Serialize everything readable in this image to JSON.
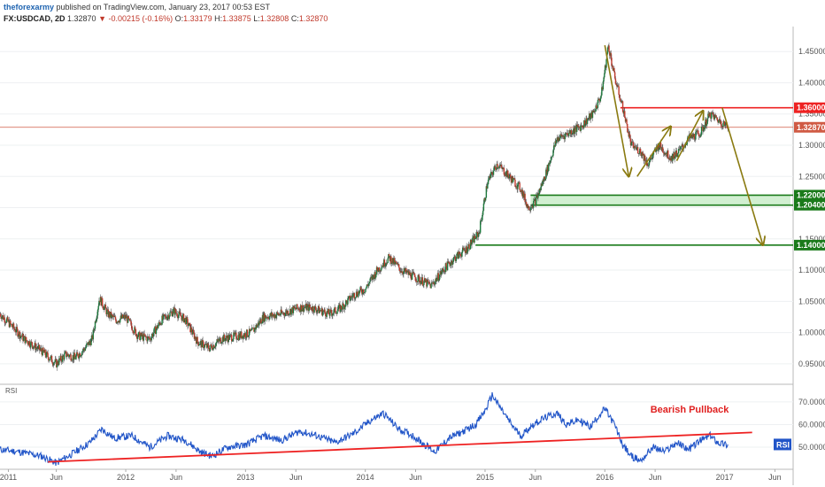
{
  "header": {
    "author": "theforexarmy",
    "published": "published on TradingView.com, January 23, 2017 00:53 EST",
    "symbol": "FX:USDCAD, 2D",
    "last": "1.32870",
    "change": "-0.00215 (-0.16%)",
    "o_label": "O:",
    "o_value": "1.33179",
    "h_label": "H:",
    "h_value": "1.33875",
    "l_label": "L:",
    "l_value": "1.32808",
    "c_label": "C:",
    "c_value": "1.32870"
  },
  "chart_data": [
    {
      "type": "candlestick",
      "symbol": "FX:USDCAD",
      "timeframe": "2D",
      "x_ticks": [
        "2011",
        "Jun",
        "2012",
        "Jun",
        "2013",
        "Jun",
        "2014",
        "Jun",
        "2015",
        "Jun",
        "2016",
        "Jun",
        "2017",
        "Jun"
      ],
      "y_ticks": [
        "0.95000",
        "1.00000",
        "1.05000",
        "1.10000",
        "1.15000",
        "1.20000",
        "1.25000",
        "1.30000",
        "1.35000",
        "1.40000",
        "1.45000"
      ],
      "ylim": [
        0.92,
        1.49
      ],
      "price_path": [
        [
          2010.95,
          1.03
        ],
        [
          2011.05,
          1.01
        ],
        [
          2011.15,
          0.99
        ],
        [
          2011.3,
          0.97
        ],
        [
          2011.42,
          0.95
        ],
        [
          2011.5,
          0.965
        ],
        [
          2011.58,
          0.96
        ],
        [
          2011.66,
          0.975
        ],
        [
          2011.72,
          0.99
        ],
        [
          2011.78,
          1.055
        ],
        [
          2011.85,
          1.03
        ],
        [
          2011.92,
          1.02
        ],
        [
          2012.0,
          1.025
        ],
        [
          2012.1,
          0.995
        ],
        [
          2012.2,
          0.99
        ],
        [
          2012.3,
          1.02
        ],
        [
          2012.4,
          1.035
        ],
        [
          2012.5,
          1.02
        ],
        [
          2012.6,
          0.985
        ],
        [
          2012.7,
          0.975
        ],
        [
          2012.8,
          0.99
        ],
        [
          2012.95,
          0.995
        ],
        [
          2013.05,
          1.0
        ],
        [
          2013.15,
          1.025
        ],
        [
          2013.3,
          1.03
        ],
        [
          2013.45,
          1.04
        ],
        [
          2013.55,
          1.04
        ],
        [
          2013.7,
          1.03
        ],
        [
          2013.8,
          1.04
        ],
        [
          2013.9,
          1.06
        ],
        [
          2014.0,
          1.07
        ],
        [
          2014.1,
          1.1
        ],
        [
          2014.2,
          1.12
        ],
        [
          2014.3,
          1.1
        ],
        [
          2014.45,
          1.085
        ],
        [
          2014.55,
          1.075
        ],
        [
          2014.65,
          1.1
        ],
        [
          2014.75,
          1.12
        ],
        [
          2014.85,
          1.135
        ],
        [
          2014.95,
          1.16
        ],
        [
          2015.02,
          1.24
        ],
        [
          2015.1,
          1.27
        ],
        [
          2015.2,
          1.25
        ],
        [
          2015.3,
          1.23
        ],
        [
          2015.36,
          1.2
        ],
        [
          2015.42,
          1.21
        ],
        [
          2015.5,
          1.25
        ],
        [
          2015.6,
          1.31
        ],
        [
          2015.7,
          1.32
        ],
        [
          2015.8,
          1.33
        ],
        [
          2015.9,
          1.35
        ],
        [
          2015.97,
          1.38
        ],
        [
          2016.03,
          1.46
        ],
        [
          2016.08,
          1.41
        ],
        [
          2016.15,
          1.36
        ],
        [
          2016.22,
          1.3
        ],
        [
          2016.3,
          1.29
        ],
        [
          2016.36,
          1.27
        ],
        [
          2016.45,
          1.3
        ],
        [
          2016.55,
          1.28
        ],
        [
          2016.62,
          1.29
        ],
        [
          2016.7,
          1.31
        ],
        [
          2016.8,
          1.32
        ],
        [
          2016.88,
          1.35
        ],
        [
          2016.95,
          1.34
        ],
        [
          2017.03,
          1.3287
        ]
      ],
      "last_price": 1.3287,
      "levels": [
        {
          "value": 1.36,
          "label": "1.36000",
          "color": "#ee2222"
        },
        {
          "value": 1.22,
          "label": "1.22000",
          "color": "#1a7a1a"
        },
        {
          "value": 1.204,
          "label": "1.20400",
          "color": "#1a7a1a"
        },
        {
          "value": 1.14,
          "label": "1.14000",
          "color": "#1a7a1a"
        },
        {
          "value": 1.3287,
          "label": "1.32870",
          "color": "#d05a44"
        }
      ],
      "support_zone": [
        1.204,
        1.22
      ],
      "arrows": [
        [
          [
            2016.0,
            1.46
          ],
          [
            2016.2,
            1.25
          ]
        ],
        [
          [
            2016.27,
            1.25
          ],
          [
            2016.55,
            1.33
          ]
        ],
        [
          [
            2016.6,
            1.275
          ],
          [
            2016.82,
            1.355
          ]
        ],
        [
          [
            2016.98,
            1.36
          ],
          [
            2017.32,
            1.14
          ]
        ]
      ]
    },
    {
      "type": "line",
      "name": "RSI",
      "legend": "RSI",
      "y_ticks": [
        "50.0000",
        "60.0000",
        "70.0000"
      ],
      "ylim": [
        41,
        77
      ],
      "series": [
        {
          "values": [
            [
              2010.95,
              49
            ],
            [
              2011.1,
              48
            ],
            [
              2011.3,
              46
            ],
            [
              2011.42,
              43
            ],
            [
              2011.55,
              47
            ],
            [
              2011.7,
              52
            ],
            [
              2011.8,
              58
            ],
            [
              2011.9,
              54
            ],
            [
              2012.05,
              55
            ],
            [
              2012.2,
              50
            ],
            [
              2012.35,
              55
            ],
            [
              2012.5,
              53
            ],
            [
              2012.62,
              48
            ],
            [
              2012.72,
              46
            ],
            [
              2012.85,
              50
            ],
            [
              2013.0,
              51
            ],
            [
              2013.15,
              55
            ],
            [
              2013.3,
              53
            ],
            [
              2013.45,
              57
            ],
            [
              2013.6,
              55
            ],
            [
              2013.75,
              52
            ],
            [
              2013.9,
              56
            ],
            [
              2014.05,
              62
            ],
            [
              2014.15,
              65
            ],
            [
              2014.28,
              58
            ],
            [
              2014.4,
              55
            ],
            [
              2014.5,
              51
            ],
            [
              2014.58,
              48
            ],
            [
              2014.7,
              54
            ],
            [
              2014.82,
              57
            ],
            [
              2014.92,
              60
            ],
            [
              2015.0,
              66
            ],
            [
              2015.06,
              73
            ],
            [
              2015.12,
              68
            ],
            [
              2015.22,
              60
            ],
            [
              2015.3,
              55
            ],
            [
              2015.4,
              60
            ],
            [
              2015.5,
              63
            ],
            [
              2015.6,
              65
            ],
            [
              2015.68,
              60
            ],
            [
              2015.78,
              62
            ],
            [
              2015.88,
              59
            ],
            [
              2015.95,
              64
            ],
            [
              2016.0,
              67
            ],
            [
              2016.08,
              60
            ],
            [
              2016.15,
              51
            ],
            [
              2016.22,
              46
            ],
            [
              2016.3,
              44
            ],
            [
              2016.4,
              50
            ],
            [
              2016.5,
              48
            ],
            [
              2016.6,
              52
            ],
            [
              2016.7,
              49
            ],
            [
              2016.8,
              53
            ],
            [
              2016.88,
              55
            ],
            [
              2016.95,
              52
            ],
            [
              2017.03,
              51
            ]
          ]
        }
      ],
      "trendline": [
        [
          2011.35,
          43.5
        ],
        [
          2017.23,
          56.5
        ]
      ],
      "annotation": "Bearish Pullback"
    }
  ],
  "colors": {
    "bull": "#1b7a3c",
    "bear": "#c0392b",
    "rsi": "#2155c8",
    "trend": "#ee2222",
    "arrow": "#8a7a10"
  }
}
